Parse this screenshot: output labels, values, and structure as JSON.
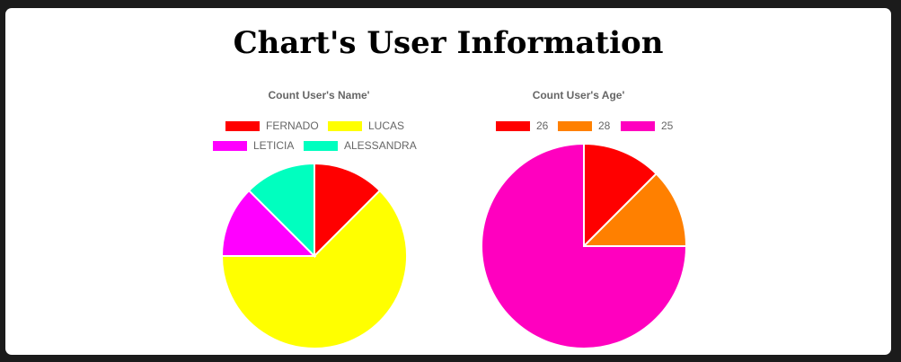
{
  "page": {
    "title": "Chart's User Information"
  },
  "chart_data": [
    {
      "type": "pie",
      "title": "Count User's Name'",
      "categories": [
        "FERNADO",
        "LUCAS",
        "LETICIA",
        "ALESSANDRA"
      ],
      "values": [
        1,
        5,
        1,
        1
      ],
      "colors": [
        "#ff0000",
        "#ffff00",
        "#ff00ff",
        "#00ffbf"
      ],
      "legend": "top"
    },
    {
      "type": "pie",
      "title": "Count User's Age'",
      "categories": [
        "26",
        "28",
        "25"
      ],
      "values": [
        1,
        1,
        6
      ],
      "colors": [
        "#ff0000",
        "#ff8000",
        "#ff00bf"
      ],
      "legend": "top"
    }
  ]
}
